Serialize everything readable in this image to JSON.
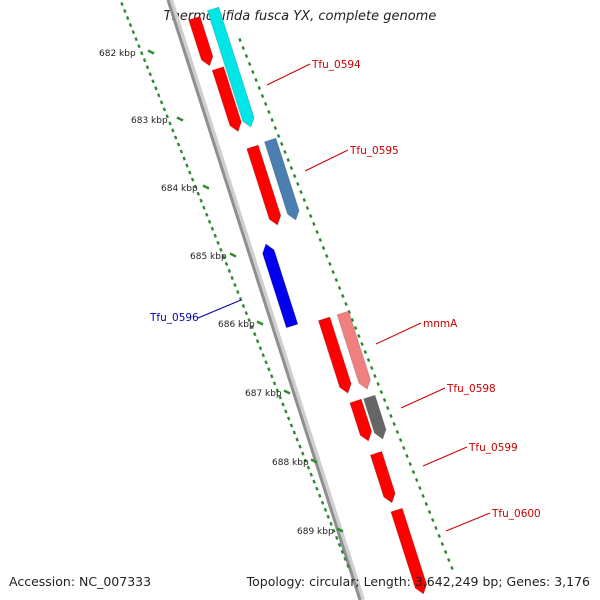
{
  "title": "Thermobifida fusca YX, complete genome",
  "footer": {
    "accession": "Accession: NC_007333",
    "summary": "Topology: circular; Length: 3,642,249 bp; Genes: 3,176"
  },
  "colors": {
    "backbone": "#8f8f8f",
    "tick": "#2e8b2e",
    "label_red": "#cc0000",
    "label_blue": "#0000aa"
  },
  "ticks": [
    {
      "label": "682 kbp"
    },
    {
      "label": "683 kbp"
    },
    {
      "label": "684 kbp"
    },
    {
      "label": "685 kbp"
    },
    {
      "label": "686 kbp"
    },
    {
      "label": "687 kbp"
    },
    {
      "label": "688 kbp"
    },
    {
      "label": "689 kbp"
    }
  ],
  "features": [
    {
      "label": "Tfu_0594",
      "strand": "forward",
      "color": "#00e5e5",
      "track": "outer"
    },
    {
      "label": "Tfu_0595",
      "strand": "forward",
      "color": "#4a7fb0",
      "track": "outer"
    },
    {
      "label": "Tfu_0596",
      "strand": "reverse",
      "color": "#0000ee",
      "track": "inner"
    },
    {
      "label": "mnmA",
      "strand": "forward",
      "color": "#f08080",
      "track": "outer"
    },
    {
      "label": "Tfu_0598",
      "strand": "forward",
      "color": "#666666",
      "track": "outer"
    },
    {
      "label": "Tfu_0599",
      "strand": "forward",
      "color": "#ff0000",
      "track": "outer"
    },
    {
      "label": "Tfu_0600",
      "strand": "forward",
      "color": "#ff0000",
      "track": "outer"
    }
  ],
  "cds_blocks": [
    {
      "kind": "cds",
      "color": "#ff0000"
    },
    {
      "kind": "cds",
      "color": "#ff0000"
    },
    {
      "kind": "cds",
      "color": "#ff0000"
    },
    {
      "kind": "cds",
      "color": "#ff0000"
    },
    {
      "kind": "cds",
      "color": "#ff0000"
    }
  ]
}
